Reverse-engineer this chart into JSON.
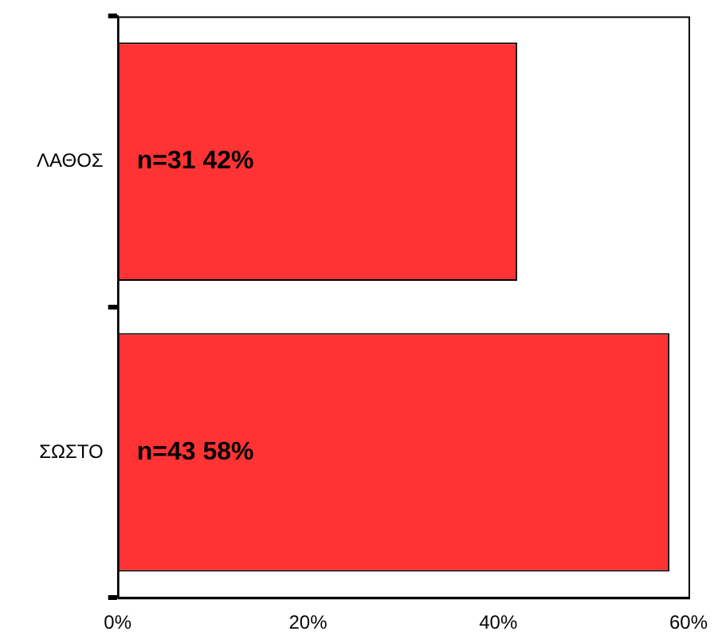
{
  "chart_data": {
    "type": "bar",
    "orientation": "horizontal",
    "categories": [
      "ΛΑΘΟΣ",
      "ΣΩΣΤΟ"
    ],
    "values": [
      42,
      58
    ],
    "color": "#ff3333",
    "value_labels": [
      "n=31 42%",
      "n=43 58%"
    ],
    "xlim": [
      0,
      60
    ],
    "xticks": [
      {
        "value": 0,
        "label": "0%"
      },
      {
        "value": 20,
        "label": "20%"
      },
      {
        "value": 40,
        "label": "40%"
      },
      {
        "value": 60,
        "label": "60%"
      }
    ],
    "grid": false,
    "legend": false
  }
}
